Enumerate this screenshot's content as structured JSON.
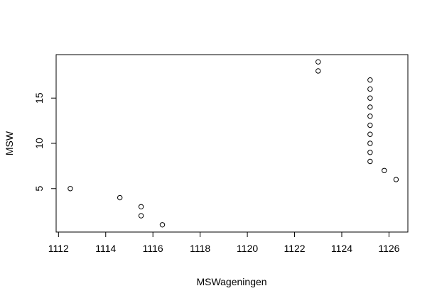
{
  "chart_data": {
    "type": "scatter",
    "title": "",
    "xlabel": "MSWageningen",
    "ylabel": "MSW",
    "xlim": [
      1111.9,
      1126.8
    ],
    "ylim": [
      0.2,
      19.8
    ],
    "xticks": [
      1112,
      1114,
      1116,
      1118,
      1120,
      1122,
      1124,
      1126
    ],
    "xtick_labels": [
      "1112",
      "1114",
      "1116",
      "1118",
      "1120",
      "1122",
      "1124",
      "1126"
    ],
    "yticks": [
      5,
      10,
      15
    ],
    "ytick_labels": [
      "5",
      "10",
      "15"
    ],
    "grid": false,
    "legend": "none",
    "colors": {
      "point_stroke": "#000000",
      "axis": "#000000",
      "background": "#ffffff"
    },
    "series": [
      {
        "points": [
          [
            1112.5,
            5
          ],
          [
            1114.6,
            4
          ],
          [
            1115.5,
            3
          ],
          [
            1115.5,
            2
          ],
          [
            1116.4,
            1
          ],
          [
            1123.0,
            19
          ],
          [
            1123.0,
            18
          ],
          [
            1125.2,
            17
          ],
          [
            1125.2,
            16
          ],
          [
            1125.2,
            15
          ],
          [
            1125.2,
            14
          ],
          [
            1125.2,
            13
          ],
          [
            1125.2,
            12
          ],
          [
            1125.2,
            11
          ],
          [
            1125.2,
            10
          ],
          [
            1125.2,
            9
          ],
          [
            1125.2,
            8
          ],
          [
            1125.8,
            7
          ],
          [
            1126.3,
            6
          ]
        ]
      }
    ]
  }
}
